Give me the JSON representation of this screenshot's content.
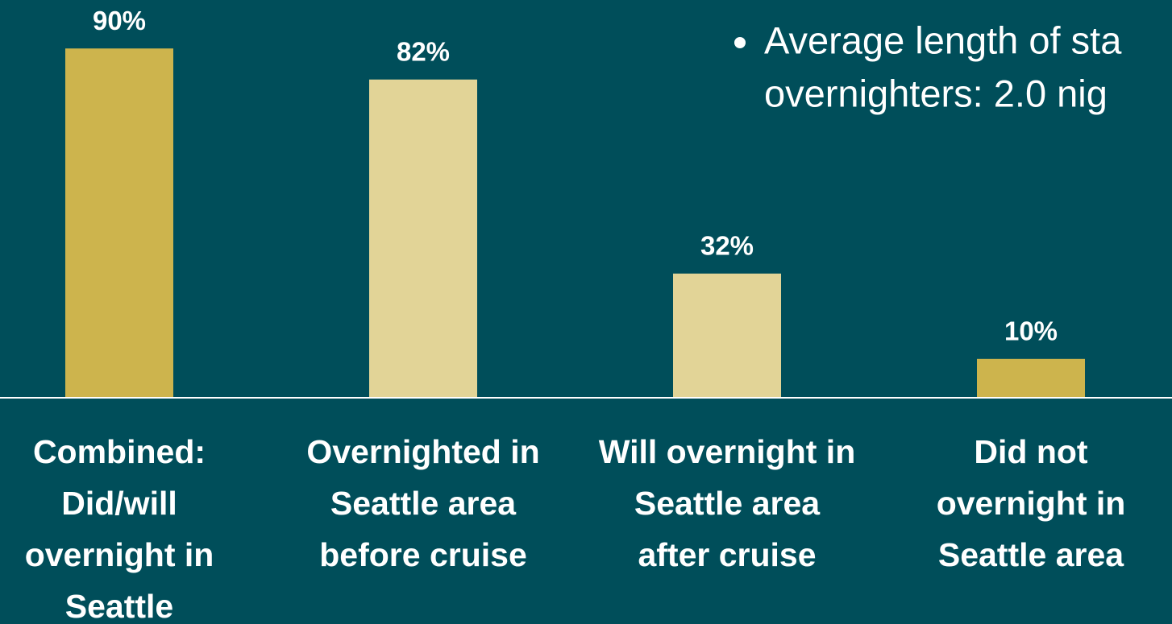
{
  "chart_data": {
    "type": "bar",
    "categories": [
      [
        "Combined:",
        "Did/will",
        "overnight in",
        "Seattle"
      ],
      [
        "Overnighted in",
        "Seattle area",
        "before cruise"
      ],
      [
        "Will overnight in",
        "Seattle area",
        "after cruise"
      ],
      [
        "Did not",
        "overnight in",
        "Seattle area"
      ]
    ],
    "values": [
      90,
      82,
      32,
      10
    ],
    "value_labels": [
      "90%",
      "82%",
      "32%",
      "10%"
    ],
    "colors": [
      "#cdb44d",
      "#e2d497",
      "#e2d497",
      "#cdb44d"
    ],
    "ylim": [
      0,
      100
    ],
    "annotation": [
      "Average length of sta",
      "overnighters: 2.0 nig"
    ]
  }
}
